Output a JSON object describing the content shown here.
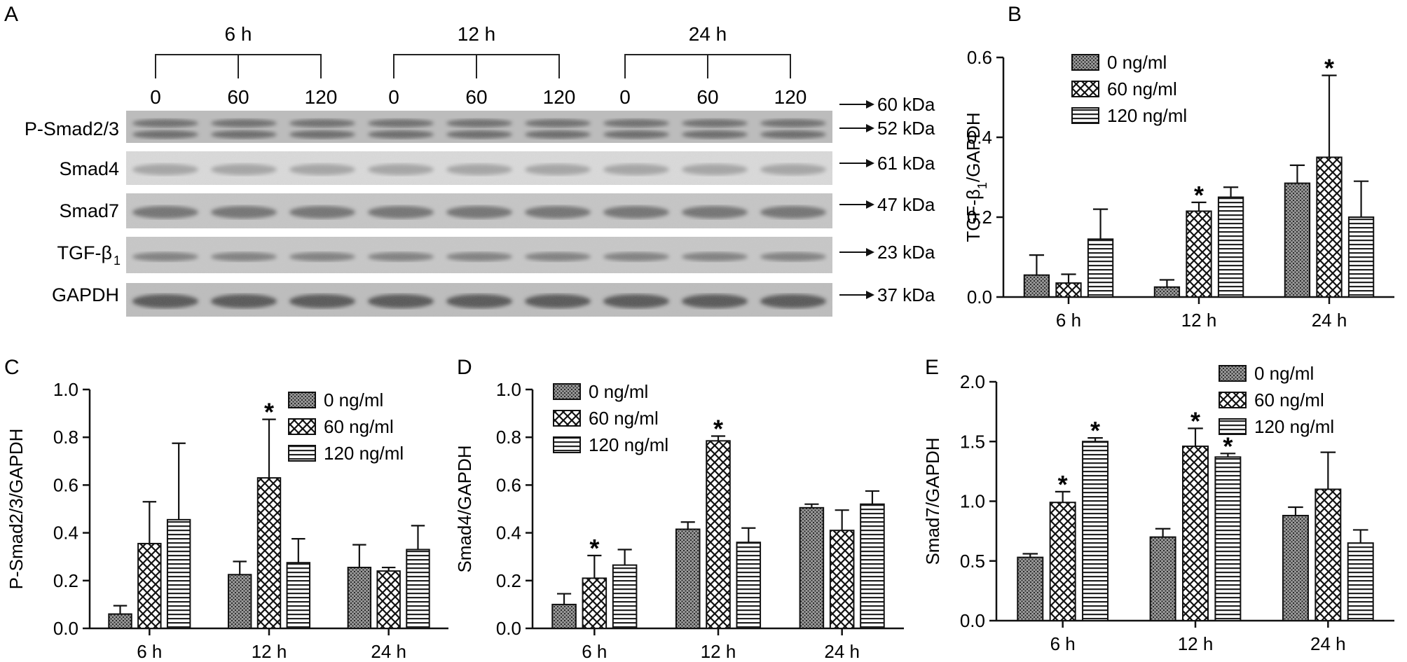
{
  "figure": {
    "panel_letters": [
      "A",
      "B",
      "C",
      "D",
      "E"
    ]
  },
  "blot": {
    "time_groups": [
      "6 h",
      "12 h",
      "24 h"
    ],
    "doses": [
      "0",
      "60",
      "120"
    ],
    "rows": [
      {
        "label": "P-Smad2/3",
        "kda": [
          "60 kDa",
          "52 kDa"
        ]
      },
      {
        "label": "Smad4",
        "kda": [
          "61 kDa"
        ]
      },
      {
        "label": "Smad7",
        "kda": [
          "47 kDa"
        ]
      },
      {
        "label": "TGF-β",
        "label_sub": "1",
        "kda": [
          "23 kDa"
        ]
      },
      {
        "label": "GAPDH",
        "kda": [
          "37 kDa"
        ]
      }
    ]
  },
  "legend_entries": [
    "0 ng/ml",
    "60 ng/ml",
    "120 ng/ml"
  ],
  "chart_data": [
    {
      "panel": "B",
      "type": "bar",
      "ylabel": "TGF-β",
      "ylabel_sub": "1",
      "ylabel_suffix": "/GAPDH",
      "categories": [
        "6 h",
        "12 h",
        "24 h"
      ],
      "ylim": [
        0,
        0.6
      ],
      "yticks": [
        "0.0",
        "0.2",
        "0.4",
        "0.6"
      ],
      "legend_position": "top-left",
      "series": [
        {
          "name": "0 ng/ml",
          "values": [
            0.055,
            0.025,
            0.285
          ],
          "errors": [
            0.05,
            0.018,
            0.045
          ]
        },
        {
          "name": "60 ng/ml",
          "values": [
            0.035,
            0.215,
            0.35
          ],
          "errors": [
            0.022,
            0.022,
            0.205
          ]
        },
        {
          "name": "120 ng/ml",
          "values": [
            0.145,
            0.25,
            0.2
          ],
          "errors": [
            0.075,
            0.025,
            0.09
          ]
        }
      ],
      "stars": [
        [
          false,
          false,
          false
        ],
        [
          false,
          true,
          true
        ],
        [
          false,
          false,
          false
        ]
      ]
    },
    {
      "panel": "C",
      "type": "bar",
      "ylabel": "P-Smad2/3/GAPDH",
      "categories": [
        "6 h",
        "12 h",
        "24 h"
      ],
      "ylim": [
        0,
        1.0
      ],
      "yticks": [
        "0.0",
        "0.2",
        "0.4",
        "0.6",
        "0.8",
        "1.0"
      ],
      "legend_position": "top-right",
      "series": [
        {
          "name": "0 ng/ml",
          "values": [
            0.06,
            0.225,
            0.255
          ],
          "errors": [
            0.035,
            0.055,
            0.095
          ]
        },
        {
          "name": "60 ng/ml",
          "values": [
            0.355,
            0.63,
            0.24
          ],
          "errors": [
            0.175,
            0.245,
            0.015
          ]
        },
        {
          "name": "120 ng/ml",
          "values": [
            0.455,
            0.275,
            0.33
          ],
          "errors": [
            0.32,
            0.1,
            0.1
          ]
        }
      ],
      "stars": [
        [
          false,
          false,
          false
        ],
        [
          false,
          true,
          false
        ],
        [
          false,
          false,
          false
        ]
      ]
    },
    {
      "panel": "D",
      "type": "bar",
      "ylabel": "Smad4/GAPDH",
      "categories": [
        "6 h",
        "12 h",
        "24 h"
      ],
      "ylim": [
        0,
        1.0
      ],
      "yticks": [
        "0.0",
        "0.2",
        "0.4",
        "0.6",
        "0.8",
        "1.0"
      ],
      "legend_position": "top-left",
      "series": [
        {
          "name": "0 ng/ml",
          "values": [
            0.1,
            0.415,
            0.505
          ],
          "errors": [
            0.045,
            0.03,
            0.015
          ]
        },
        {
          "name": "60 ng/ml",
          "values": [
            0.21,
            0.785,
            0.41
          ],
          "errors": [
            0.095,
            0.02,
            0.085
          ]
        },
        {
          "name": "120 ng/ml",
          "values": [
            0.265,
            0.36,
            0.52
          ],
          "errors": [
            0.065,
            0.06,
            0.055
          ]
        }
      ],
      "stars": [
        [
          false,
          false,
          false
        ],
        [
          true,
          true,
          false
        ],
        [
          false,
          false,
          false
        ]
      ]
    },
    {
      "panel": "E",
      "type": "bar",
      "ylabel": "Smad7/GAPDH",
      "categories": [
        "6 h",
        "12 h",
        "24 h"
      ],
      "ylim": [
        0,
        2.0
      ],
      "yticks": [
        "0.0",
        "0.5",
        "1.0",
        "1.5",
        "2.0"
      ],
      "legend_position": "top-right",
      "series": [
        {
          "name": "0 ng/ml",
          "values": [
            0.53,
            0.7,
            0.88
          ],
          "errors": [
            0.03,
            0.07,
            0.07
          ]
        },
        {
          "name": "60 ng/ml",
          "values": [
            0.99,
            1.46,
            1.1
          ],
          "errors": [
            0.09,
            0.15,
            0.31
          ]
        },
        {
          "name": "120 ng/ml",
          "values": [
            1.5,
            1.37,
            0.65
          ],
          "errors": [
            0.03,
            0.03,
            0.11
          ]
        }
      ],
      "stars": [
        [
          false,
          false,
          false
        ],
        [
          true,
          true,
          false
        ],
        [
          true,
          true,
          false
        ]
      ]
    }
  ]
}
